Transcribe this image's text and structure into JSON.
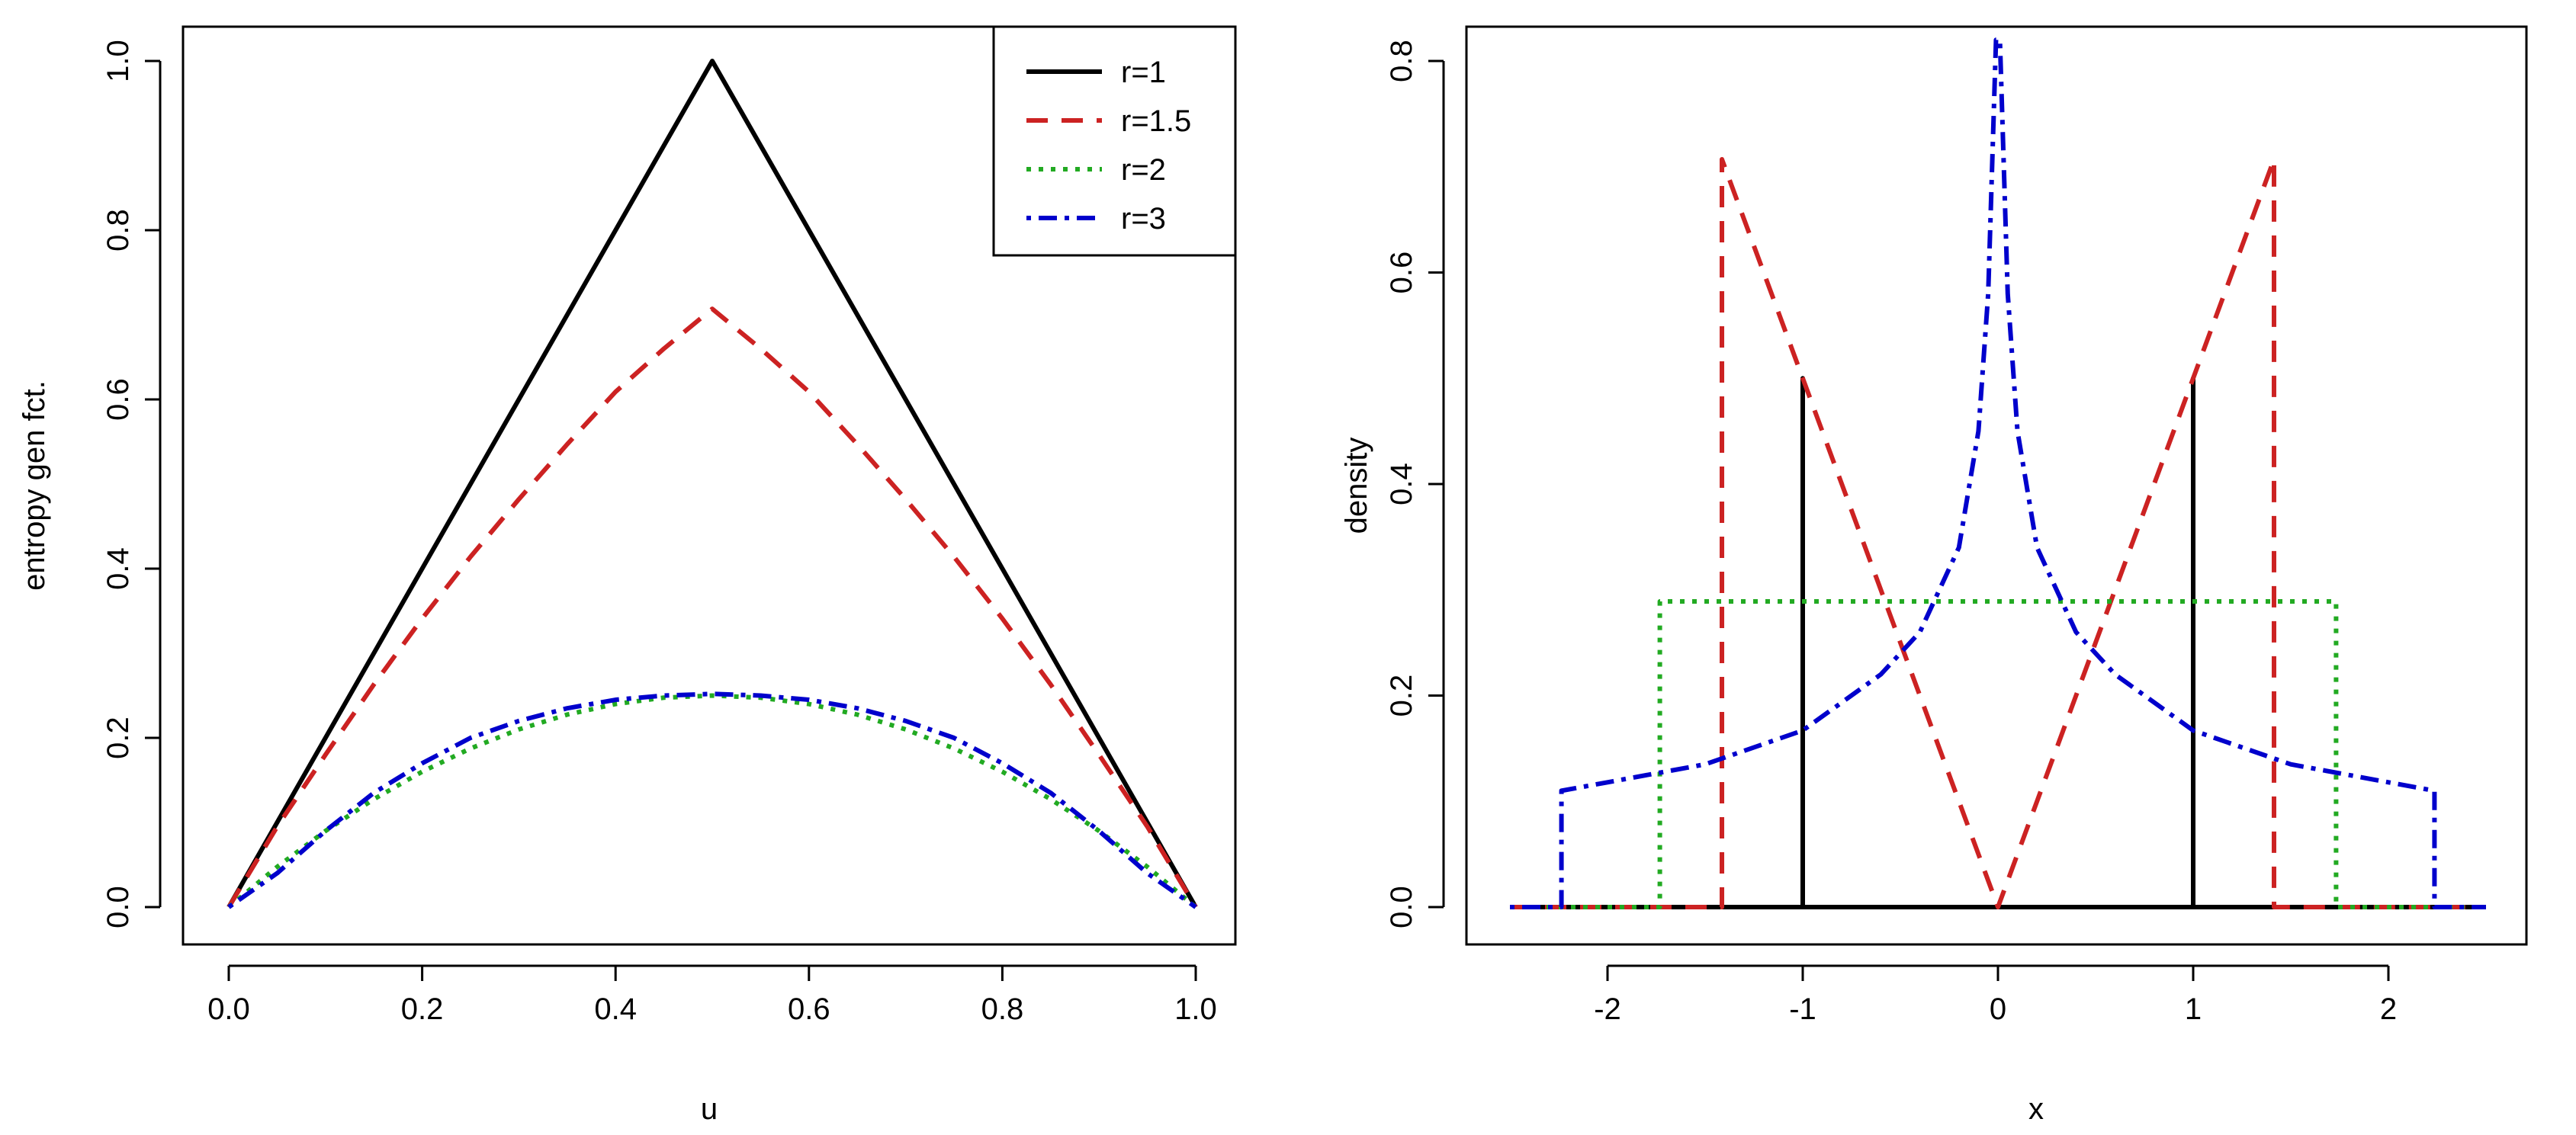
{
  "chart_data": [
    {
      "type": "line",
      "title": "",
      "xlabel": "u",
      "ylabel": "entropy gen fct.",
      "xlim": [
        0,
        1
      ],
      "ylim": [
        0,
        1
      ],
      "x_ticks": [
        "0.0",
        "0.2",
        "0.4",
        "0.6",
        "0.8",
        "1.0"
      ],
      "y_ticks": [
        "0.0",
        "0.2",
        "0.4",
        "0.6",
        "0.8",
        "1.0"
      ],
      "legend": {
        "position": "top-right",
        "entries": [
          "r=1",
          "r=1.5",
          "r=2",
          "r=3"
        ]
      },
      "series": [
        {
          "name": "r=1",
          "color": "#000000",
          "dash": "solid",
          "x": [
            0,
            0.05,
            0.1,
            0.15,
            0.2,
            0.25,
            0.3,
            0.35,
            0.4,
            0.45,
            0.5,
            0.55,
            0.6,
            0.65,
            0.7,
            0.75,
            0.8,
            0.85,
            0.9,
            0.95,
            1
          ],
          "y": [
            0,
            0.1,
            0.2,
            0.3,
            0.4,
            0.5,
            0.6,
            0.7,
            0.8,
            0.9,
            1.0,
            0.9,
            0.8,
            0.7,
            0.6,
            0.5,
            0.4,
            0.3,
            0.2,
            0.1,
            0
          ]
        },
        {
          "name": "r=1.5",
          "color": "#cc2222",
          "dash": "dashed",
          "x": [
            0,
            0.05,
            0.1,
            0.15,
            0.2,
            0.25,
            0.3,
            0.35,
            0.4,
            0.45,
            0.5,
            0.55,
            0.6,
            0.65,
            0.7,
            0.75,
            0.8,
            0.85,
            0.9,
            0.95,
            1
          ],
          "y": [
            0,
            0.095,
            0.18,
            0.263,
            0.341,
            0.414,
            0.482,
            0.547,
            0.609,
            0.66,
            0.707,
            0.66,
            0.609,
            0.547,
            0.482,
            0.414,
            0.341,
            0.263,
            0.18,
            0.095,
            0
          ]
        },
        {
          "name": "r=2",
          "color": "#22aa22",
          "dash": "dotted",
          "x": [
            0,
            0.05,
            0.1,
            0.15,
            0.2,
            0.25,
            0.3,
            0.35,
            0.4,
            0.45,
            0.5,
            0.55,
            0.6,
            0.65,
            0.7,
            0.75,
            0.8,
            0.85,
            0.9,
            0.95,
            1
          ],
          "y": [
            0,
            0.0475,
            0.09,
            0.1275,
            0.16,
            0.1875,
            0.21,
            0.2275,
            0.24,
            0.2475,
            0.25,
            0.2475,
            0.24,
            0.2275,
            0.21,
            0.1875,
            0.16,
            0.1275,
            0.09,
            0.0475,
            0
          ]
        },
        {
          "name": "r=3",
          "color": "#0000cc",
          "dash": "dotdash",
          "x": [
            0,
            0.05,
            0.1,
            0.15,
            0.2,
            0.25,
            0.3,
            0.35,
            0.4,
            0.45,
            0.5,
            0.55,
            0.6,
            0.65,
            0.7,
            0.75,
            0.8,
            0.85,
            0.9,
            0.95,
            1
          ],
          "y": [
            0,
            0.04,
            0.09,
            0.135,
            0.17,
            0.2,
            0.22,
            0.235,
            0.245,
            0.25,
            0.252,
            0.25,
            0.245,
            0.235,
            0.22,
            0.2,
            0.17,
            0.135,
            0.09,
            0.04,
            0
          ]
        }
      ]
    },
    {
      "type": "line",
      "title": "",
      "xlabel": "x",
      "ylabel": "density",
      "xlim": [
        -2.5,
        2.5
      ],
      "ylim": [
        0,
        0.8
      ],
      "x_ticks": [
        "-2",
        "-1",
        "0",
        "1",
        "2"
      ],
      "y_ticks": [
        "0.0",
        "0.2",
        "0.4",
        "0.6",
        "0.8"
      ],
      "series": [
        {
          "name": "r=1",
          "color": "#000000",
          "dash": "solid",
          "x": [
            -2.5,
            -1,
            -1,
            -1,
            1,
            1,
            1,
            2.5
          ],
          "y": [
            0,
            0,
            0.5,
            0,
            0,
            0.5,
            0,
            0
          ]
        },
        {
          "name": "r=1.5",
          "color": "#cc2222",
          "dash": "dashed",
          "x": [
            -2.5,
            -1.414,
            -1.414,
            0,
            1.414,
            1.414,
            2.5
          ],
          "y": [
            0,
            0,
            0.707,
            0,
            0.707,
            0,
            0
          ]
        },
        {
          "name": "r=2",
          "color": "#22aa22",
          "dash": "dotted",
          "x": [
            -2.5,
            -1.732,
            -1.732,
            1.732,
            1.732,
            2.5
          ],
          "y": [
            0,
            0,
            0.289,
            0.289,
            0,
            0
          ]
        },
        {
          "name": "r=3",
          "color": "#0000cc",
          "dash": "dotdash",
          "x": [
            -2.5,
            -2.236,
            -2.236,
            -2.0,
            -1.5,
            -1.0,
            -0.6,
            -0.4,
            -0.2,
            -0.1,
            -0.05,
            -0.01,
            0.01,
            0.05,
            0.1,
            0.2,
            0.4,
            0.6,
            1.0,
            1.5,
            2.0,
            2.236,
            2.236,
            2.5
          ],
          "y": [
            0,
            0,
            0.11,
            0.118,
            0.135,
            0.167,
            0.22,
            0.26,
            0.34,
            0.45,
            0.58,
            0.82,
            0.82,
            0.58,
            0.45,
            0.34,
            0.26,
            0.22,
            0.167,
            0.135,
            0.118,
            0.11,
            0,
            0
          ]
        }
      ]
    }
  ]
}
